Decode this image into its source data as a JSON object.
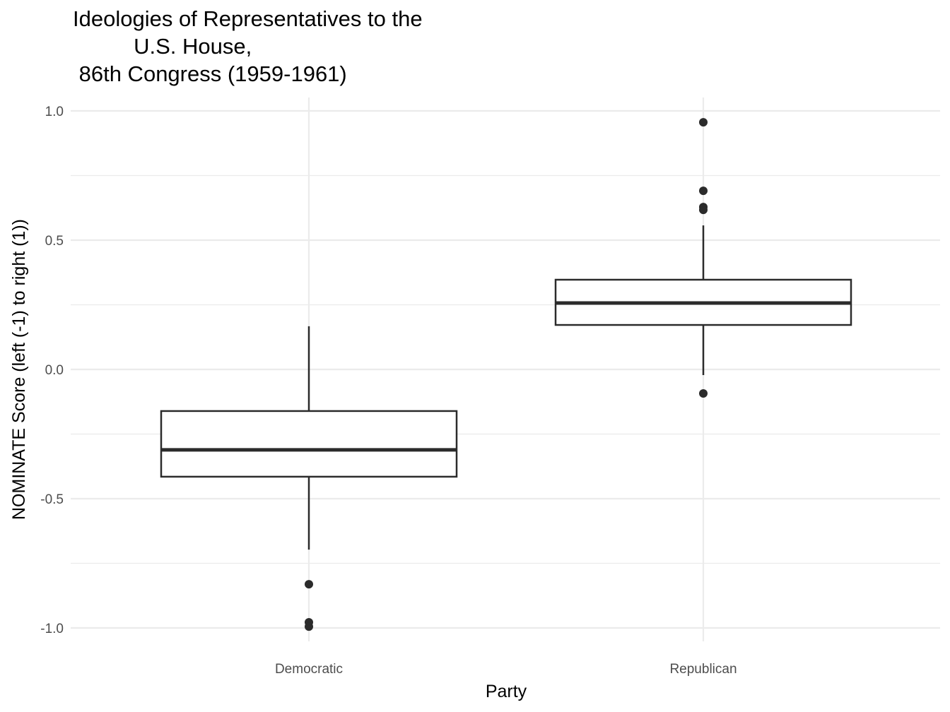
{
  "chart_data": {
    "type": "boxplot",
    "title": "Ideologies of Representatives to the\n          U.S. House,\n 86th Congress (1959-1961)",
    "title_lines": [
      "Ideologies of Representatives to the",
      "          U.S. House,",
      " 86th Congress (1959-1961)"
    ],
    "xlabel": "Party",
    "ylabel": "NOMINATE Score (left (-1) to right (1))",
    "categories": [
      "Democratic",
      "Republican"
    ],
    "ylim": [
      -1.05,
      1.05
    ],
    "yticks": [
      1.0,
      0.5,
      0.0,
      -0.5,
      -1.0
    ],
    "ytick_labels": [
      "1.0",
      "0.5",
      "0.0",
      "-0.5",
      "-1.0"
    ],
    "grid": true,
    "legend": null,
    "series": [
      {
        "name": "Democratic",
        "whisker_low": -0.697,
        "q1": -0.415,
        "median": -0.311,
        "q3": -0.161,
        "whisker_high": 0.167,
        "outliers": [
          -0.831,
          -0.978,
          -0.995
        ]
      },
      {
        "name": "Republican",
        "whisker_low": -0.022,
        "q1": 0.172,
        "median": 0.257,
        "q3": 0.347,
        "whisker_high": 0.557,
        "outliers": [
          0.956,
          0.691,
          0.628,
          0.617,
          -0.093
        ]
      }
    ],
    "colors": {
      "box_line": "#2b2b2b",
      "box_fill": "#ffffff",
      "grid": "#ebebeb",
      "tick_text": "#4d4d4d",
      "point": "#2b2b2b"
    }
  }
}
